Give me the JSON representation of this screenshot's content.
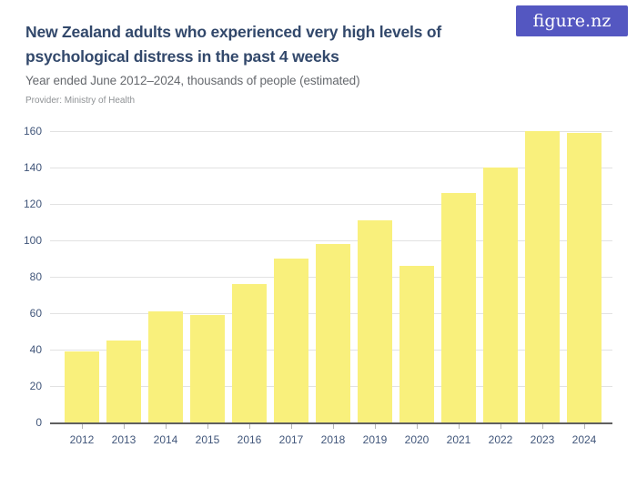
{
  "header": {
    "title_lines": [
      "New Zealand adults who experienced very high levels of",
      "psychological distress in the past 4 weeks"
    ],
    "subtitle": "Year ended June 2012–2024, thousands of people (estimated)",
    "provider": "Provider: Ministry of Health",
    "logo_text": "figure.nz"
  },
  "chart_data": {
    "type": "bar",
    "title": "New Zealand adults who experienced very high levels of psychological distress in the past 4 weeks",
    "subtitle": "Year ended June 2012–2024, thousands of people (estimated)",
    "provider": "Provider: Ministry of Health",
    "categories": [
      "2012",
      "2013",
      "2014",
      "2015",
      "2016",
      "2017",
      "2018",
      "2019",
      "2020",
      "2021",
      "2022",
      "2023",
      "2024"
    ],
    "values": [
      39,
      45,
      61,
      59,
      76,
      90,
      98,
      111,
      86,
      126,
      140,
      160,
      159
    ],
    "xlabel": "",
    "ylabel": "thousands of people",
    "ylim": [
      0,
      160
    ],
    "yticks": [
      0,
      20,
      40,
      60,
      80,
      100,
      120,
      140,
      160
    ],
    "grid": true,
    "legend": "none",
    "colors": {
      "bar": "#F9F07C",
      "gridline": "#E2E2E2",
      "axis_line": "#5F5F5F",
      "axis_label": "#41567A",
      "title": "#32486B",
      "subtitle": "#66696E",
      "provider": "#8E9194",
      "logo_bg": "#5457C1",
      "logo_text": "#FFFFFF",
      "background": "#FFFFFF"
    }
  }
}
